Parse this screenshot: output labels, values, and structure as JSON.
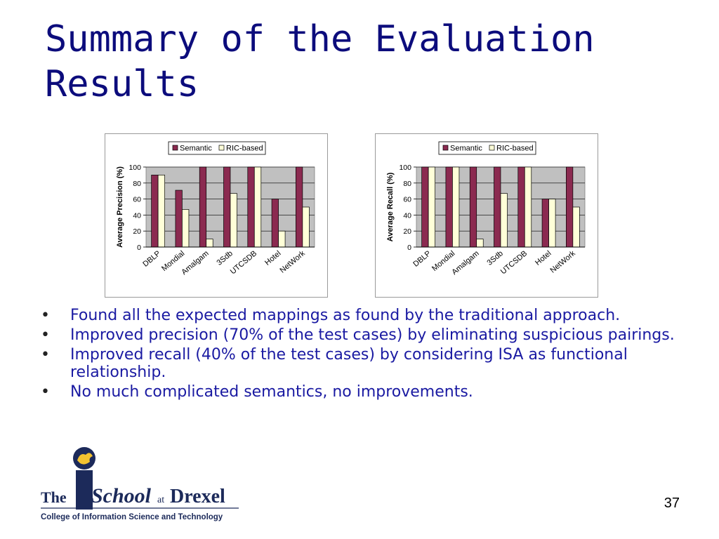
{
  "slide": {
    "title": "Summary of the Evaluation Results",
    "page_number": "37"
  },
  "chart_data": [
    {
      "type": "bar",
      "legend_position": "top",
      "grid": true,
      "ylabel": "Average Precision (%)",
      "ylim": [
        0,
        100
      ],
      "yticks": [
        0,
        20,
        40,
        60,
        80,
        100
      ],
      "categories": [
        "DBLP",
        "Mondial",
        "Amalgam",
        "3Sdb",
        "UTCSDB",
        "Hotel",
        "NetWork"
      ],
      "series": [
        {
          "name": "Semantic",
          "color": "#8b2a50",
          "values": [
            90,
            71,
            100,
            100,
            100,
            60,
            100
          ]
        },
        {
          "name": "RIC-based",
          "color": "#ffffd8",
          "values": [
            90,
            47,
            10,
            67,
            100,
            20,
            50
          ]
        }
      ]
    },
    {
      "type": "bar",
      "legend_position": "top",
      "grid": true,
      "ylabel": "Average Recall (%)",
      "ylim": [
        0,
        100
      ],
      "yticks": [
        0,
        20,
        40,
        60,
        80,
        100
      ],
      "categories": [
        "DBLP",
        "Mondial",
        "Amalgam",
        "3Sdb",
        "UTCSDB",
        "Hotel",
        "NetWork"
      ],
      "series": [
        {
          "name": "Semantic",
          "color": "#8b2a50",
          "values": [
            100,
            100,
            100,
            100,
            100,
            60,
            100
          ]
        },
        {
          "name": "RIC-based",
          "color": "#ffffd8",
          "values": [
            100,
            100,
            10,
            67,
            100,
            60,
            50
          ]
        }
      ]
    }
  ],
  "bullets": [
    "Found all the expected mappings as found by the traditional approach.",
    "Improved precision (70% of the test cases) by eliminating suspicious pairings.",
    "Improved recall (40% of the test cases) by considering ISA as functional relationship.",
    "No much complicated semantics, no improvements."
  ],
  "bullet_symbol": "•",
  "logo": {
    "the": "The",
    "i": "i",
    "school": "School",
    "at": "at",
    "drexel": "Drexel",
    "subtitle": "College of Information Science and Technology",
    "colors": {
      "navy": "#1c2a5a",
      "gold": "#f2c230"
    }
  }
}
